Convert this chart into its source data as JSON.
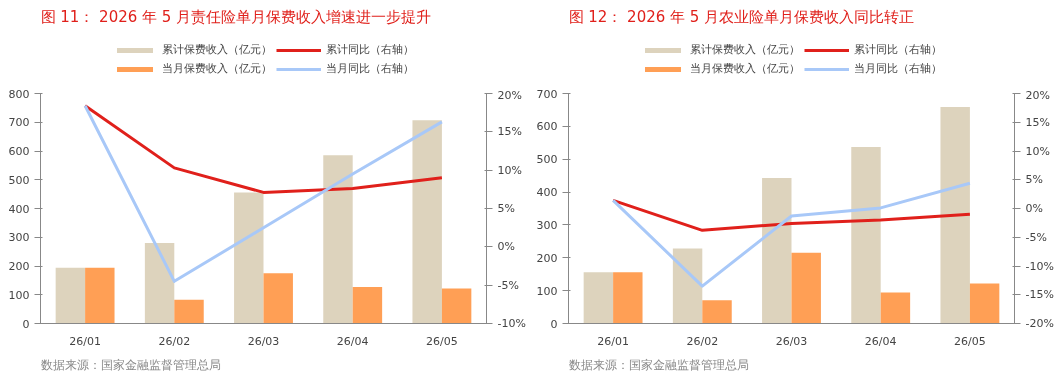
{
  "chart_data": [
    {
      "type": "bar",
      "title": "图 11： 2026 年 5 月责任险单月保费收入增速进一步提升",
      "categories": [
        "26/01",
        "26/02",
        "26/03",
        "26/04",
        "26/05"
      ],
      "ylim": [
        0,
        800
      ],
      "yticks": [
        0,
        100,
        200,
        300,
        400,
        500,
        600,
        700,
        800
      ],
      "y2lim": [
        -10,
        20
      ],
      "y2ticks": [
        {
          "value": -10,
          "label": "-10%"
        },
        {
          "value": -5,
          "label": "-5%"
        },
        {
          "value": 0,
          "label": "0%"
        },
        {
          "value": 5,
          "label": "5%"
        },
        {
          "value": 10,
          "label": "10%"
        },
        {
          "value": 15,
          "label": "15%"
        },
        {
          "value": 20,
          "label": "20%"
        }
      ],
      "legend": "top",
      "grid": false,
      "annotations": [
        "数据来源：国家金融监督管理总局"
      ],
      "series": [
        {
          "name": "累计保费收入（亿元）",
          "color": "#ddd3bd",
          "values": [
            194,
            280,
            456,
            585,
            707
          ]
        },
        {
          "name": "当月保费收入（亿元）",
          "color": "#ff9f55",
          "values": [
            194,
            83,
            175,
            127,
            122
          ]
        },
        {
          "name": "累计同比（右轴）",
          "type": "line",
          "axis": "y2",
          "color": "#e0201b",
          "values": [
            18.4,
            10.3,
            7.1,
            7.6,
            9.0
          ]
        },
        {
          "name": "当月同比（右轴）",
          "type": "line",
          "axis": "y2",
          "color": "#a8c8f8",
          "values": [
            18.4,
            -4.5,
            2.5,
            9.5,
            16.3
          ]
        }
      ]
    },
    {
      "type": "bar",
      "title": "图 12： 2026 年 5 月农业险单月保费收入同比转正",
      "categories": [
        "26/01",
        "26/02",
        "26/03",
        "26/04",
        "26/05"
      ],
      "ylim": [
        0,
        700
      ],
      "yticks": [
        0,
        100,
        200,
        300,
        400,
        500,
        600,
        700
      ],
      "y2lim": [
        -20,
        20
      ],
      "y2ticks": [
        {
          "value": -20,
          "label": "-20%"
        },
        {
          "value": -15,
          "label": "-15%"
        },
        {
          "value": -10,
          "label": "-10%"
        },
        {
          "value": -5,
          "label": "-5%"
        },
        {
          "value": 0,
          "label": "0%"
        },
        {
          "value": 5,
          "label": "5%"
        },
        {
          "value": 10,
          "label": "10%"
        },
        {
          "value": 15,
          "label": "15%"
        },
        {
          "value": 20,
          "label": "20%"
        }
      ],
      "legend": "top",
      "grid": false,
      "annotations": [
        "数据来源：国家金融监督管理总局"
      ],
      "series": [
        {
          "name": "累计保费收入（亿元）",
          "color": "#ddd3bd",
          "values": [
            156,
            228,
            443,
            537,
            659
          ]
        },
        {
          "name": "当月保费收入（亿元）",
          "color": "#ff9f55",
          "values": [
            156,
            71,
            215,
            94,
            122
          ]
        },
        {
          "name": "累计同比（右轴）",
          "type": "line",
          "axis": "y2",
          "color": "#e0201b",
          "values": [
            1.4,
            -3.8,
            -2.6,
            -2.0,
            -1.0
          ]
        },
        {
          "name": "当月同比（右轴）",
          "type": "line",
          "axis": "y2",
          "color": "#a8c8f8",
          "values": [
            1.4,
            -13.5,
            -1.3,
            0.1,
            4.4
          ]
        }
      ]
    }
  ]
}
